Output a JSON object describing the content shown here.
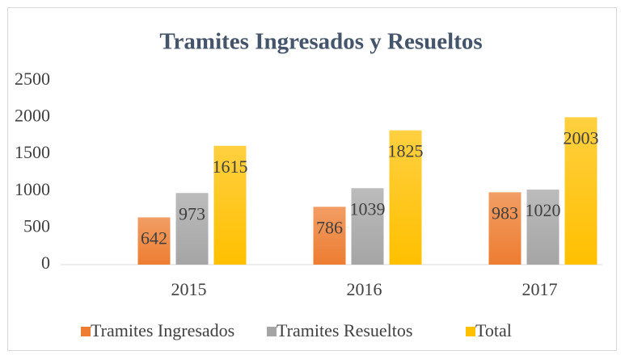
{
  "chart_data": {
    "type": "bar",
    "title": "Tramites Ingresados y Resueltos",
    "categories": [
      "2015",
      "2016",
      "2017"
    ],
    "series": [
      {
        "name": "Tramites Ingresados",
        "color": "#ed7d31",
        "values": [
          642,
          786,
          983
        ]
      },
      {
        "name": "Tramites Resueltos",
        "color": "#a5a5a5",
        "values": [
          973,
          1039,
          1020
        ]
      },
      {
        "name": "Total",
        "color": "#ffc000",
        "values": [
          1615,
          1825,
          2003
        ]
      }
    ],
    "ylim": [
      0,
      2500
    ],
    "yticks": [
      0,
      500,
      1000,
      1500,
      2000,
      2500
    ],
    "grid": false,
    "legend": "bottom"
  }
}
